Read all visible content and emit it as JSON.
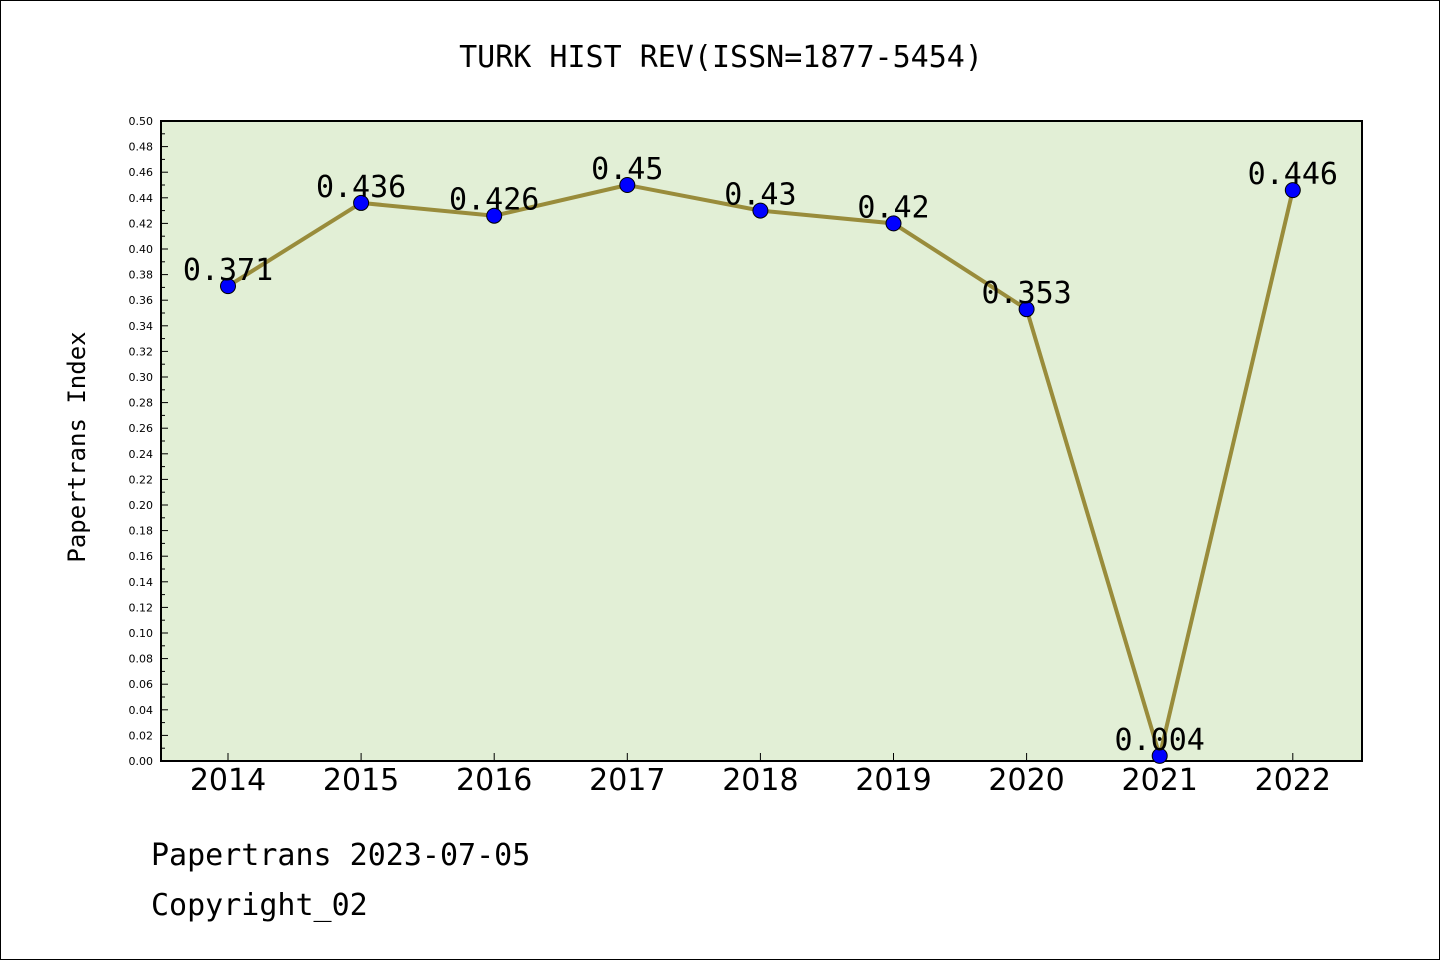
{
  "chart_data": {
    "type": "line",
    "title": "TURK HIST REV(ISSN=1877-5454)",
    "xlabel": "",
    "ylabel": "Papertrans Index",
    "categories": [
      "2014",
      "2015",
      "2016",
      "2017",
      "2018",
      "2019",
      "2020",
      "2021",
      "2022"
    ],
    "series": [
      {
        "values": [
          0.371,
          0.436,
          0.426,
          0.45,
          0.43,
          0.42,
          0.353,
          0.004,
          0.446
        ]
      }
    ],
    "data_labels": [
      "0.371",
      "0.436",
      "0.426",
      "0.45",
      "0.43",
      "0.42",
      "0.353",
      "0.004",
      "0.446"
    ],
    "ylim": [
      0,
      0.5
    ],
    "yticks": [
      "0.00",
      "0.02",
      "0.04",
      "0.06",
      "0.08",
      "0.10",
      "0.12",
      "0.14",
      "0.16",
      "0.18",
      "0.20",
      "0.22",
      "0.24",
      "0.26",
      "0.28",
      "0.30",
      "0.32",
      "0.34",
      "0.36",
      "0.38",
      "0.40",
      "0.42",
      "0.44",
      "0.46",
      "0.48",
      "0.50"
    ],
    "grid": false,
    "colors": {
      "plot_background": "#e2efd6",
      "line": "#998c3b",
      "marker": "#0000ff"
    }
  },
  "footer": {
    "line1": "Papertrans 2023-07-05",
    "line2": "Copyright_02"
  }
}
